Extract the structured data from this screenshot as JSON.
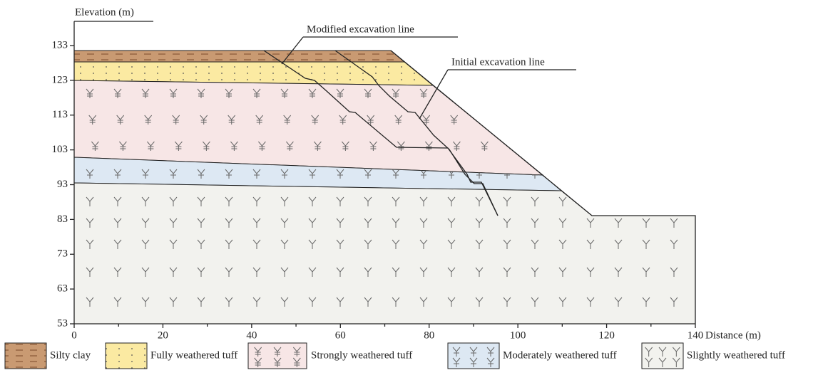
{
  "axes": {
    "y_label": "Elevation (m)",
    "x_label": "Distance (m)",
    "xticks": [
      0,
      20,
      40,
      60,
      80,
      100,
      120,
      140
    ],
    "yticks": [
      133,
      123,
      113,
      103,
      93,
      83,
      73,
      63,
      53
    ]
  },
  "annotations": {
    "modified": "Modified excavation line",
    "initial": "Initial excavation line"
  },
  "legend": [
    {
      "label": "Silty clay"
    },
    {
      "label": "Fully weathered tuff"
    },
    {
      "label": "Strongly weathered tuff"
    },
    {
      "label": "Moderately weathered tuff"
    },
    {
      "label": "Slightly weathered tuff"
    }
  ]
}
